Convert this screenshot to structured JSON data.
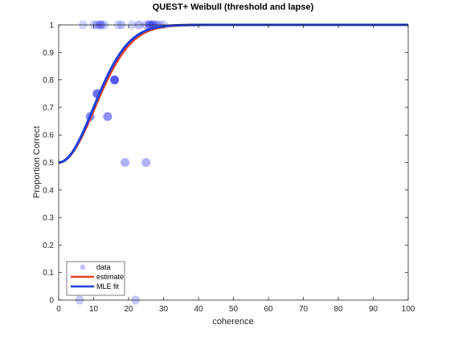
{
  "chart_data": {
    "type": "scatter",
    "title": "QUEST+ Weibull (threshold and lapse)",
    "xlabel": "coherence",
    "ylabel": "Proportion Correct",
    "xlim": [
      0,
      100
    ],
    "ylim": [
      0,
      1
    ],
    "xticks": [
      "0",
      "10",
      "20",
      "30",
      "40",
      "50",
      "60",
      "70",
      "80",
      "90",
      "100"
    ],
    "yticks": [
      "0",
      "0.1",
      "0.2",
      "0.3",
      "0.4",
      "0.5",
      "0.6",
      "0.7",
      "0.8",
      "0.9",
      "1"
    ],
    "grid": false,
    "legend_position": "bottom-left",
    "colors": {
      "data": "#1f1ff0",
      "estimate": "#e8401c",
      "fit": "#1a3fe0"
    },
    "series": [
      {
        "name": "data",
        "kind": "points",
        "points": [
          {
            "x": 7,
            "y": 1,
            "alpha": 0.2
          },
          {
            "x": 10,
            "y": 1,
            "alpha": 0.2
          },
          {
            "x": 11,
            "y": 1,
            "alpha": 0.3
          },
          {
            "x": 12,
            "y": 1,
            "alpha": 0.45
          },
          {
            "x": 13,
            "y": 1,
            "alpha": 0.25
          },
          {
            "x": 17,
            "y": 1,
            "alpha": 0.2
          },
          {
            "x": 18,
            "y": 1,
            "alpha": 0.25
          },
          {
            "x": 21,
            "y": 1,
            "alpha": 0.2
          },
          {
            "x": 23,
            "y": 1,
            "alpha": 0.3
          },
          {
            "x": 25,
            "y": 1,
            "alpha": 0.25
          },
          {
            "x": 26,
            "y": 1,
            "alpha": 0.55
          },
          {
            "x": 27,
            "y": 1,
            "alpha": 0.5
          },
          {
            "x": 28,
            "y": 1,
            "alpha": 0.35
          },
          {
            "x": 29,
            "y": 1,
            "alpha": 0.2
          },
          {
            "x": 30,
            "y": 1,
            "alpha": 0.2
          },
          {
            "x": 16,
            "y": 0.8,
            "alpha": 0.75
          },
          {
            "x": 11,
            "y": 0.75,
            "alpha": 0.65
          },
          {
            "x": 9,
            "y": 0.667,
            "alpha": 0.5
          },
          {
            "x": 14,
            "y": 0.667,
            "alpha": 0.5
          },
          {
            "x": 19,
            "y": 0.5,
            "alpha": 0.35
          },
          {
            "x": 25,
            "y": 0.5,
            "alpha": 0.35
          },
          {
            "x": 6,
            "y": 0,
            "alpha": 0.25
          },
          {
            "x": 22,
            "y": 0,
            "alpha": 0.25
          }
        ]
      },
      {
        "name": "estimate",
        "kind": "curve",
        "threshold": 14.5,
        "slope": 2.0,
        "guess": 0.5,
        "lapse": 0.0
      },
      {
        "name": "MLE fit",
        "kind": "curve",
        "threshold": 14.0,
        "slope": 2.0,
        "guess": 0.5,
        "lapse": 0.0
      }
    ]
  }
}
